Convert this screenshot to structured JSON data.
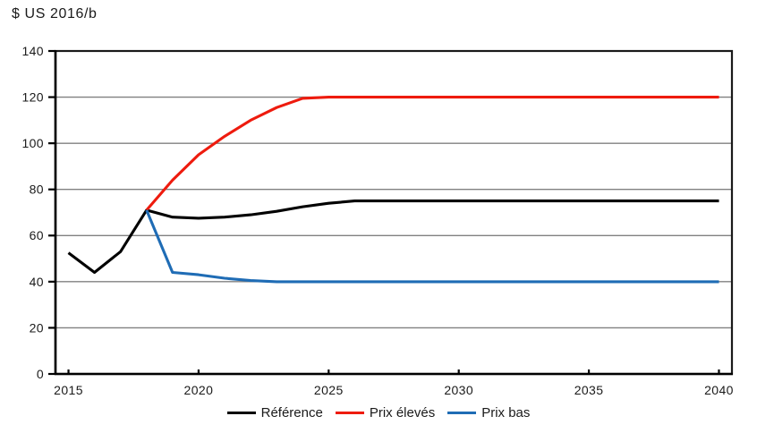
{
  "unit_label": "$ US 2016/b",
  "chart_data": {
    "type": "line",
    "title": "$ US 2016/b",
    "xlabel": "",
    "ylabel": "$ US 2016/b",
    "xlim": [
      2014.5,
      2040.5
    ],
    "ylim": [
      0,
      140
    ],
    "x_ticks": [
      2015,
      2020,
      2025,
      2030,
      2035,
      2040
    ],
    "y_ticks": [
      0,
      20,
      40,
      60,
      80,
      100,
      120,
      140
    ],
    "grid": "horizontal",
    "grid_color": "#808080",
    "axis_color": "#1a1a1a",
    "legend_position": "bottom-center",
    "series": [
      {
        "name": "Référence",
        "color": "#000000",
        "x": [
          2015,
          2016,
          2017,
          2018,
          2019,
          2020,
          2021,
          2022,
          2023,
          2024,
          2025,
          2026,
          2027,
          2028,
          2029,
          2030,
          2031,
          2032,
          2033,
          2034,
          2035,
          2036,
          2037,
          2038,
          2039,
          2040
        ],
        "values": [
          52.5,
          44,
          53,
          71,
          68,
          67.5,
          68,
          69,
          70.5,
          72.5,
          74,
          75,
          75,
          75,
          75,
          75,
          75,
          75,
          75,
          75,
          75,
          75,
          75,
          75,
          75,
          75
        ]
      },
      {
        "name": "Prix élevés",
        "color": "#ee1b0e",
        "x": [
          2018,
          2019,
          2020,
          2021,
          2022,
          2023,
          2024,
          2025,
          2026,
          2027,
          2028,
          2029,
          2030,
          2031,
          2032,
          2033,
          2034,
          2035,
          2036,
          2037,
          2038,
          2039,
          2040
        ],
        "values": [
          71,
          84,
          95,
          103,
          110,
          115.5,
          119.5,
          120,
          120,
          120,
          120,
          120,
          120,
          120,
          120,
          120,
          120,
          120,
          120,
          120,
          120,
          120,
          120
        ]
      },
      {
        "name": "Prix bas",
        "color": "#1f6cb5",
        "x": [
          2018,
          2019,
          2020,
          2021,
          2022,
          2023,
          2024,
          2025,
          2026,
          2027,
          2028,
          2029,
          2030,
          2031,
          2032,
          2033,
          2034,
          2035,
          2036,
          2037,
          2038,
          2039,
          2040
        ],
        "values": [
          71,
          44,
          43,
          41.5,
          40.5,
          40,
          40,
          40,
          40,
          40,
          40,
          40,
          40,
          40,
          40,
          40,
          40,
          40,
          40,
          40,
          40,
          40,
          40
        ]
      }
    ]
  }
}
